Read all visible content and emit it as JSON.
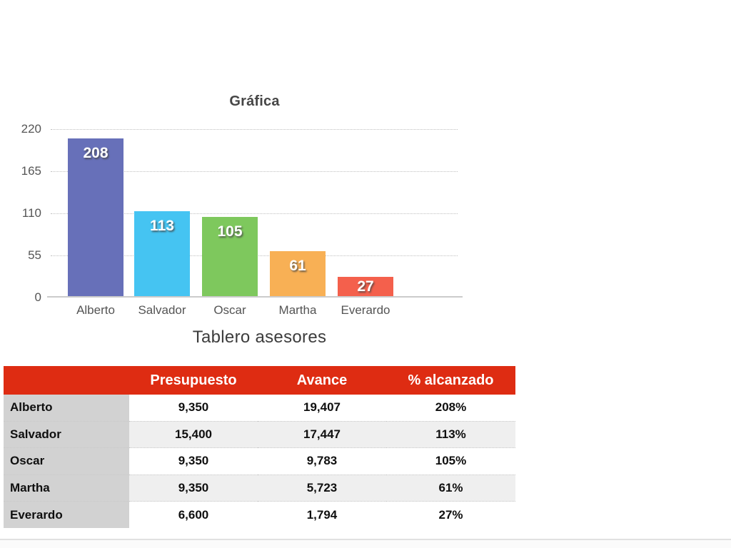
{
  "chart_data": {
    "type": "bar",
    "title": "Gráfica",
    "categories": [
      "Alberto",
      "Salvador",
      "Oscar",
      "Martha",
      "Everardo"
    ],
    "values": [
      208,
      113,
      105,
      61,
      27
    ],
    "bar_colors": [
      "#6770B9",
      "#45C4F2",
      "#7EC85D",
      "#F8B055",
      "#F4604C"
    ],
    "ylim": [
      0,
      220
    ],
    "yticks": [
      0,
      55,
      110,
      165,
      220
    ],
    "grid": "horizontal dotted",
    "legend": "none",
    "value_labels": "white, inside top of each bar"
  },
  "table": {
    "title": "Tablero asesores",
    "name_header": "",
    "columns": [
      "Presupuesto",
      "Avance",
      "% alcanzado"
    ],
    "rows": [
      {
        "name": "Alberto",
        "presupuesto": "9,350",
        "avance": "19,407",
        "alcanzado": "208%"
      },
      {
        "name": "Salvador",
        "presupuesto": "15,400",
        "avance": "17,447",
        "alcanzado": "113%"
      },
      {
        "name": "Oscar",
        "presupuesto": "9,350",
        "avance": "9,783",
        "alcanzado": "105%"
      },
      {
        "name": "Martha",
        "presupuesto": "9,350",
        "avance": "5,723",
        "alcanzado": "61%"
      },
      {
        "name": "Everardo",
        "presupuesto": "6,600",
        "avance": "1,794",
        "alcanzado": "27%"
      }
    ]
  },
  "colors": {
    "header_red": "#DE2C12",
    "name_column_gray": "#D2D2D2",
    "alt_row_gray": "#EFEFEF",
    "axis_text_gray": "#555555",
    "title_gray": "#464646"
  }
}
